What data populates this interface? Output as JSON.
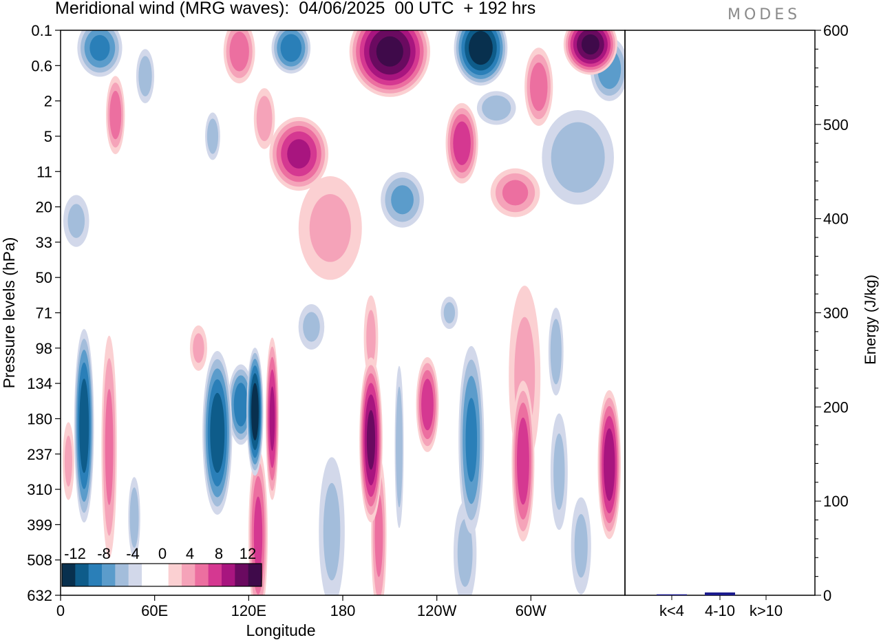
{
  "title": "Meridional wind (MRG waves):  04/06/2025  00 UTC  + 192 hrs",
  "logo": "MODES",
  "chart_data": [
    {
      "type": "heatmap",
      "title": "Meridional wind (MRG waves):  04/06/2025  00 UTC  + 192 hrs",
      "xlabel": "Longitude",
      "ylabel": "Pressure levels (hPa)",
      "x_ticks": [
        "0",
        "60E",
        "120E",
        "180",
        "120W",
        "60W"
      ],
      "x_tick_values": [
        0,
        60,
        120,
        180,
        240,
        300
      ],
      "xlim": [
        0,
        360
      ],
      "y_ticks": [
        "0.1",
        "0.6",
        "2",
        "5",
        "11",
        "20",
        "33",
        "50",
        "71",
        "98",
        "134",
        "180",
        "237",
        "310",
        "399",
        "508",
        "632"
      ],
      "colorbar": {
        "labels": [
          "-12",
          "-8",
          "-4",
          "0",
          "4",
          "8",
          "12"
        ],
        "colors": [
          "#08304e",
          "#0e5c8a",
          "#2a7fb8",
          "#5b9ccb",
          "#a3bddb",
          "#d2d8ea",
          "#ffffff",
          "#ffffff",
          "#fbd0d2",
          "#f5a3b9",
          "#ec6fa0",
          "#d53891",
          "#a8157f",
          "#6a0a60",
          "#3f0a4a"
        ]
      },
      "blobs": [
        {
          "lon": 15,
          "lev": 11.2,
          "value": -11,
          "rx": 6,
          "ry": 2.6
        },
        {
          "lon": 31,
          "lev": 11.8,
          "value": 6,
          "rx": 5,
          "ry": 3.2
        },
        {
          "lon": 5,
          "lev": 12.2,
          "value": 4,
          "rx": 4,
          "ry": 1.2
        },
        {
          "lon": 100,
          "lev": 11.4,
          "value": -11,
          "rx": 9,
          "ry": 2.2
        },
        {
          "lon": 124,
          "lev": 10.8,
          "value": -13,
          "rx": 5,
          "ry": 1.7
        },
        {
          "lon": 115,
          "lev": 10.6,
          "value": -9,
          "rx": 8,
          "ry": 1.1
        },
        {
          "lon": 47,
          "lev": 13.8,
          "value": -5,
          "rx": 4,
          "ry": 1.2
        },
        {
          "lon": 135,
          "lev": 11.0,
          "value": 10,
          "rx": 4,
          "ry": 2.2
        },
        {
          "lon": 126,
          "lev": 14.3,
          "value": 8,
          "rx": 6,
          "ry": 2.4
        },
        {
          "lon": 173,
          "lev": 14.2,
          "value": -4,
          "rx": 9,
          "ry": 2.3
        },
        {
          "lon": 198,
          "lev": 11.6,
          "value": 12,
          "rx": 7,
          "ry": 2.2
        },
        {
          "lon": 203,
          "lev": 14.3,
          "value": 6,
          "rx": 5,
          "ry": 2.3
        },
        {
          "lon": 216,
          "lev": 11.8,
          "value": -5,
          "rx": 3,
          "ry": 2.4
        },
        {
          "lon": 234,
          "lev": 10.6,
          "value": 9,
          "rx": 7,
          "ry": 1.3
        },
        {
          "lon": 262,
          "lev": 11.6,
          "value": -8,
          "rx": 8,
          "ry": 2.6
        },
        {
          "lon": 258,
          "lev": 14.8,
          "value": -4,
          "rx": 8,
          "ry": 1.6
        },
        {
          "lon": 295,
          "lev": 12.2,
          "value": 9,
          "rx": 7,
          "ry": 2.2
        },
        {
          "lon": 318,
          "lev": 12.5,
          "value": -4,
          "rx": 6,
          "ry": 1.8
        },
        {
          "lon": 316,
          "lev": 9.1,
          "value": -5,
          "rx": 5,
          "ry": 1.3
        },
        {
          "lon": 350,
          "lev": 12.3,
          "value": 11,
          "rx": 7,
          "ry": 2.0
        },
        {
          "lon": 332,
          "lev": 14.6,
          "value": -4,
          "rx": 7,
          "ry": 1.5
        },
        {
          "lon": 296,
          "lev": 9.8,
          "value": 4,
          "rx": 11,
          "ry": 2.8
        },
        {
          "lon": 198,
          "lev": 8.7,
          "value": 4,
          "rx": 5,
          "ry": 1.3
        },
        {
          "lon": 88,
          "lev": 9.0,
          "value": 4,
          "rx": 6,
          "ry": 0.7
        },
        {
          "lon": 160,
          "lev": 8.4,
          "value": -4,
          "rx": 9,
          "ry": 0.7
        },
        {
          "lon": 248,
          "lev": 8.0,
          "value": -4,
          "rx": 6,
          "ry": 0.5
        },
        {
          "lon": 172,
          "lev": 5.6,
          "value": 4,
          "rx": 22,
          "ry": 1.6
        },
        {
          "lon": 10,
          "lev": 5.4,
          "value": -4,
          "rx": 9,
          "ry": 0.8
        },
        {
          "lon": 25,
          "lev": 0.5,
          "value": -8,
          "rx": 14,
          "ry": 0.8
        },
        {
          "lon": 35,
          "lev": 2.4,
          "value": 7,
          "rx": 6,
          "ry": 1.1
        },
        {
          "lon": 54,
          "lev": 1.3,
          "value": -5,
          "rx": 6,
          "ry": 0.8
        },
        {
          "lon": 114,
          "lev": 0.6,
          "value": 7,
          "rx": 10,
          "ry": 0.9
        },
        {
          "lon": 130,
          "lev": 2.5,
          "value": 5,
          "rx": 7,
          "ry": 0.9
        },
        {
          "lon": 147,
          "lev": 0.5,
          "value": -9,
          "rx": 12,
          "ry": 0.7
        },
        {
          "lon": 210,
          "lev": 0.6,
          "value": 14,
          "rx": 24,
          "ry": 1.2
        },
        {
          "lon": 268,
          "lev": 0.5,
          "value": -13,
          "rx": 16,
          "ry": 1.0
        },
        {
          "lon": 338,
          "lev": 0.4,
          "value": 14,
          "rx": 16,
          "ry": 0.8
        },
        {
          "lon": 350,
          "lev": 1.1,
          "value": -7,
          "rx": 12,
          "ry": 0.9
        },
        {
          "lon": 305,
          "lev": 1.6,
          "value": 7,
          "rx": 9,
          "ry": 1.1
        },
        {
          "lon": 152,
          "lev": 3.5,
          "value": 10,
          "rx": 18,
          "ry": 1.0
        },
        {
          "lon": 256,
          "lev": 3.2,
          "value": 9,
          "rx": 10,
          "ry": 1.1
        },
        {
          "lon": 218,
          "lev": 4.8,
          "value": -6,
          "rx": 14,
          "ry": 0.8
        },
        {
          "lon": 290,
          "lev": 4.6,
          "value": 6,
          "rx": 16,
          "ry": 0.7
        },
        {
          "lon": 330,
          "lev": 3.6,
          "value": -5,
          "rx": 24,
          "ry": 1.4
        },
        {
          "lon": 97,
          "lev": 3.0,
          "value": -5,
          "rx": 5,
          "ry": 0.7
        },
        {
          "lon": 278,
          "lev": 2.2,
          "value": -5,
          "rx": 13,
          "ry": 0.5
        }
      ]
    },
    {
      "type": "bar",
      "categories": [
        "k<4",
        "4-10",
        "k>10"
      ],
      "values": [
        1,
        3,
        0
      ],
      "ylabel": "Energy (J/kg)",
      "ylim": [
        0,
        600
      ],
      "y_ticks": [
        "0",
        "100",
        "200",
        "300",
        "400",
        "500",
        "600"
      ],
      "bar_color": "#1a1a8c"
    }
  ]
}
